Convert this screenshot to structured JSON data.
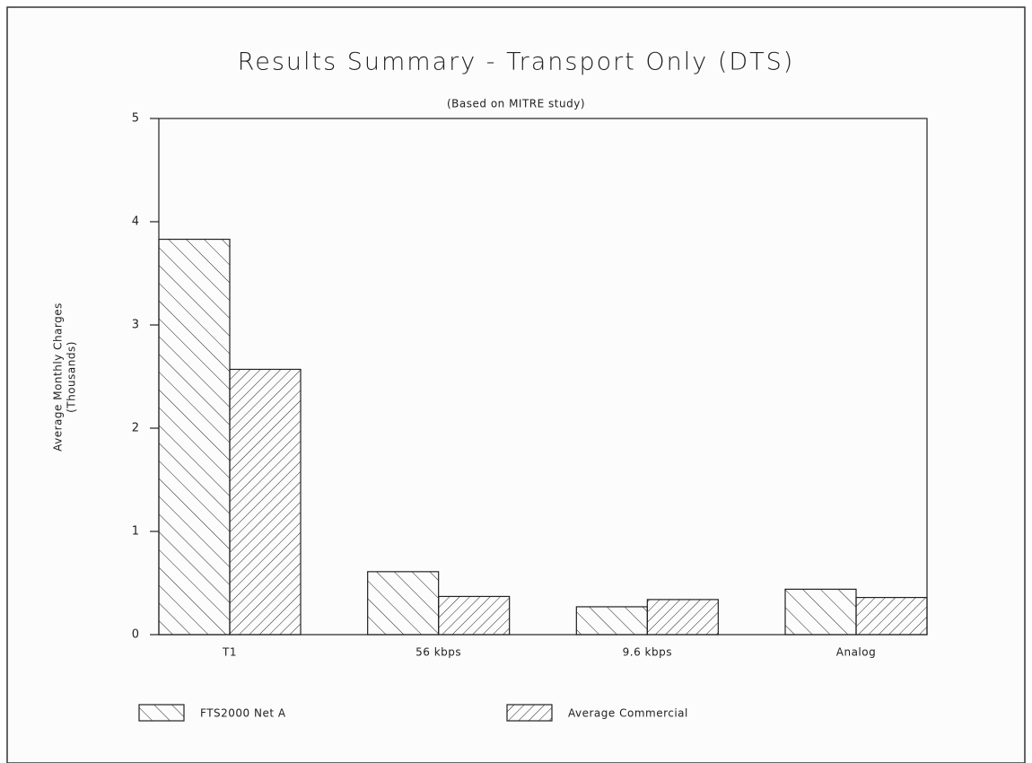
{
  "chart_data": {
    "type": "bar",
    "title": "Results Summary - Transport Only (DTS)",
    "subtitle": "(Based on MITRE study)",
    "y_label": [
      "Average Monthly Charges",
      "(Thousands)"
    ],
    "categories": [
      "T1",
      "56 kbps",
      "9.6 kbps",
      "Analog"
    ],
    "series": [
      {
        "name": "FTS2000 Net A",
        "color": "#222222",
        "hatch": "backslash",
        "values": [
          3.83,
          0.61,
          0.27,
          0.44
        ]
      },
      {
        "name": "Average Commercial",
        "color": "#222222",
        "hatch": "slash",
        "values": [
          2.57,
          0.37,
          0.34,
          0.36
        ]
      }
    ],
    "ylim": [
      0,
      5
    ],
    "yticks": [
      0,
      1,
      2,
      3,
      4,
      5
    ],
    "grid": false
  }
}
